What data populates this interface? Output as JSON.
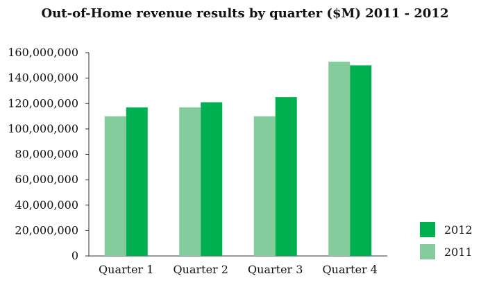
{
  "chart_data": {
    "type": "bar",
    "title": "Out-of-Home revenue results by quarter ($M) 2011 - 2012",
    "xlabel": "",
    "ylabel": "",
    "categories": [
      "Quarter 1",
      "Quarter 2",
      "Quarter 3",
      "Quarter 4"
    ],
    "series": [
      {
        "name": "2011",
        "color": "#85cc9c",
        "values": [
          110000000,
          117000000,
          110000000,
          153000000
        ]
      },
      {
        "name": "2012",
        "color": "#00b050",
        "values": [
          117000000,
          121000000,
          125000000,
          150000000
        ]
      }
    ],
    "ylim": [
      0,
      160000000
    ],
    "yticks": [
      0,
      20000000,
      40000000,
      60000000,
      80000000,
      100000000,
      120000000,
      140000000,
      160000000
    ],
    "ytick_labels": [
      "0",
      "20,000,000",
      "40,000,000",
      "60,000,000",
      "80,000,000",
      "100,000,000",
      "120,000,000",
      "140,000,000",
      "160,000,000"
    ],
    "grid": false,
    "legend": {
      "position": "bottom-right",
      "entries": [
        "2012",
        "2011"
      ]
    }
  }
}
